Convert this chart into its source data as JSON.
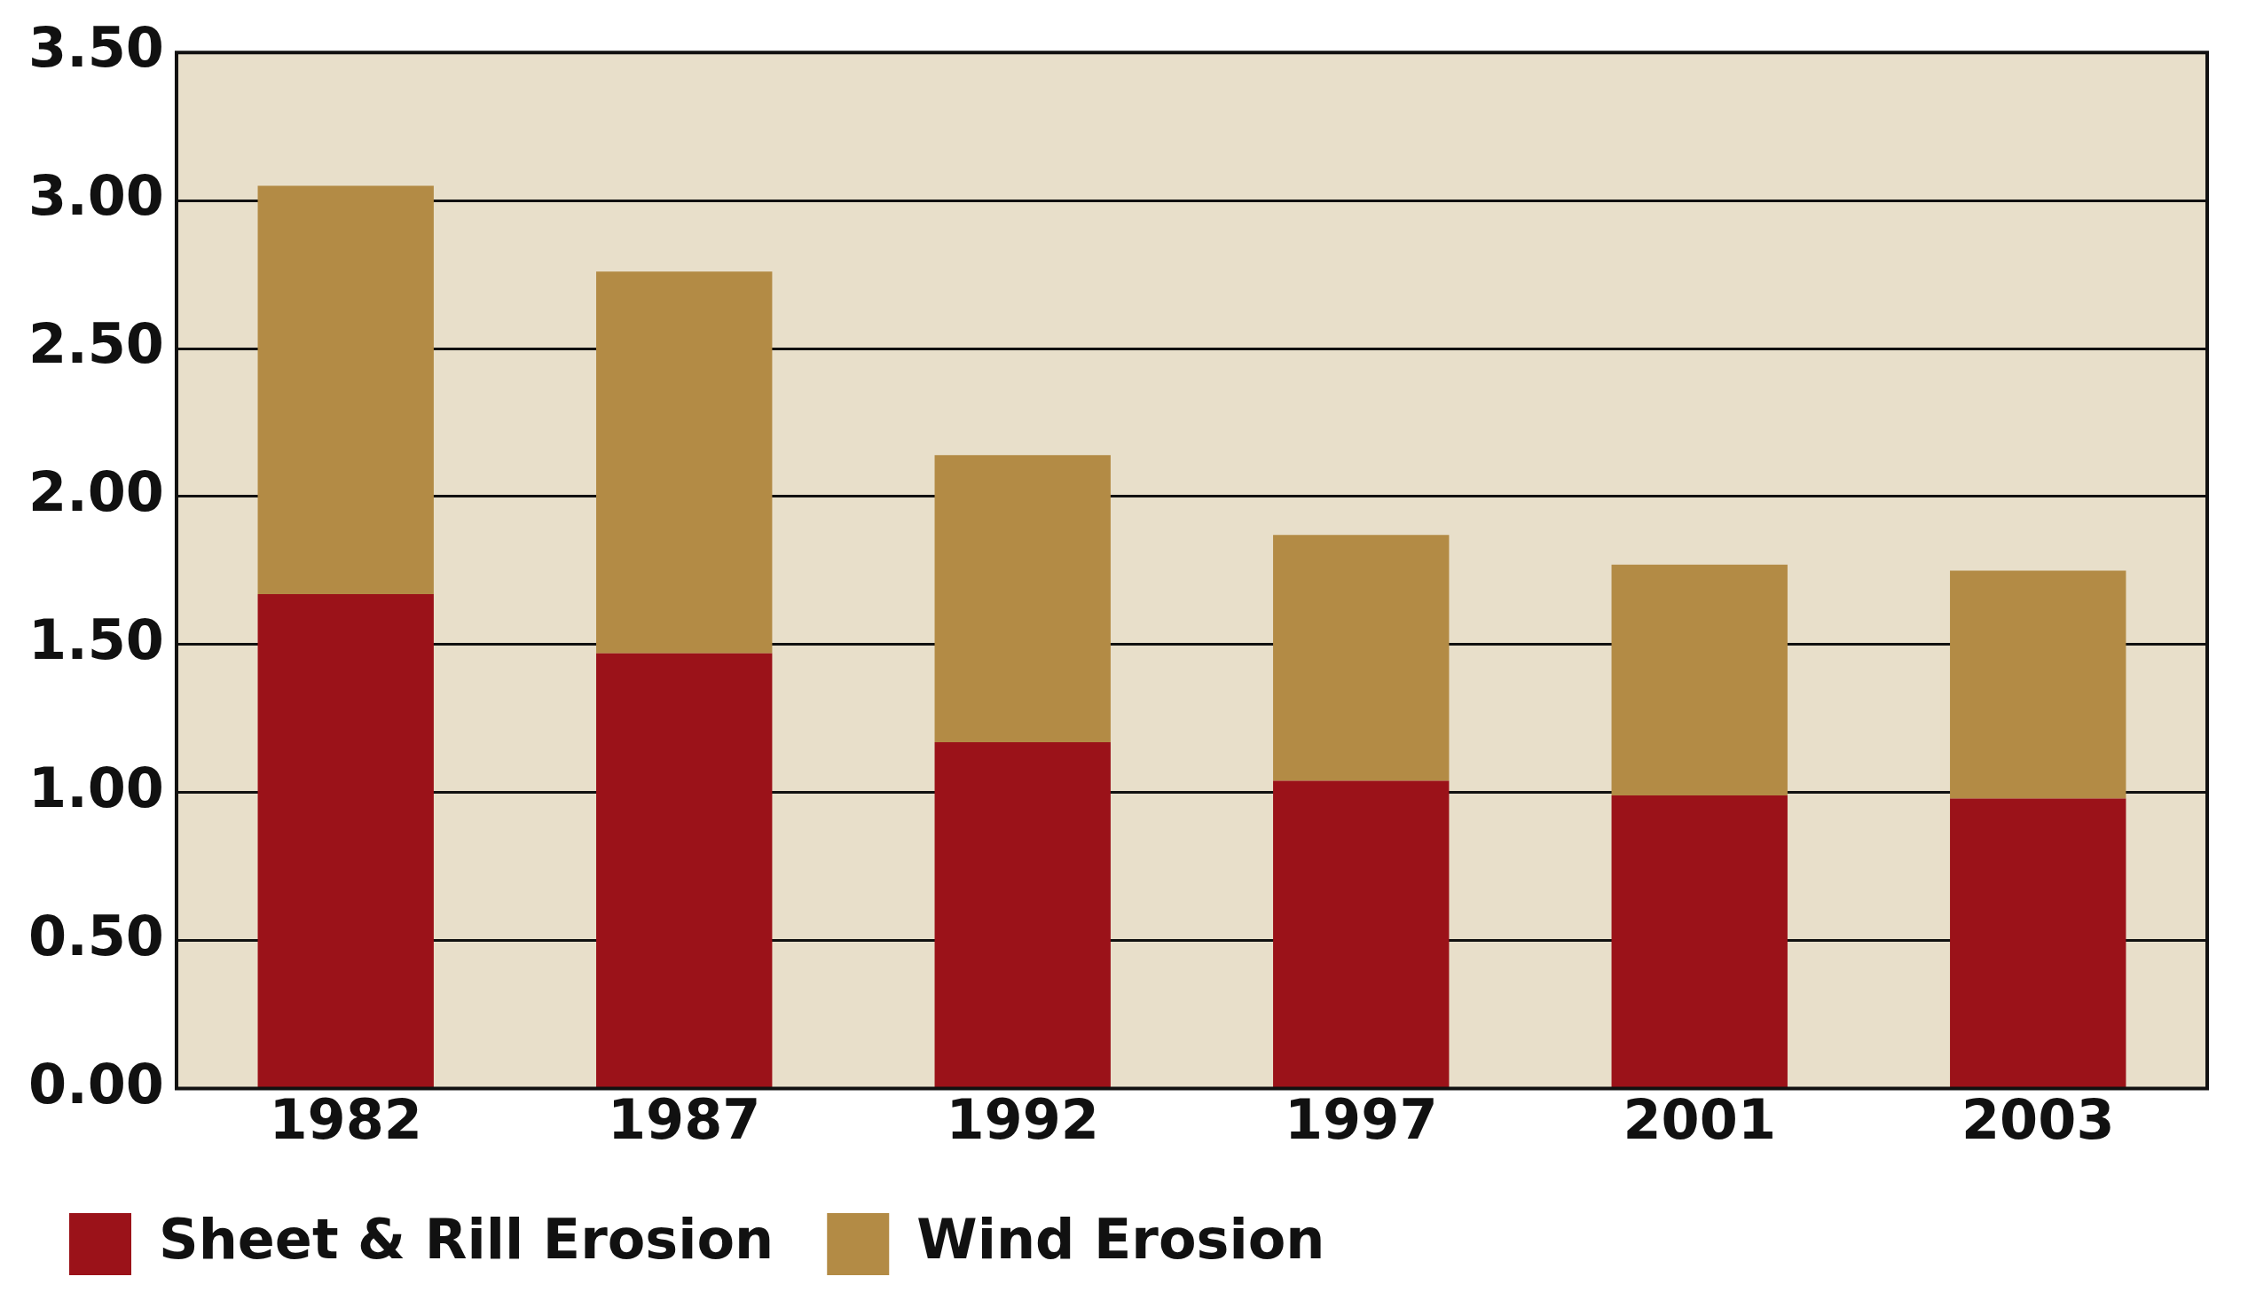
{
  "chart_data": {
    "type": "bar",
    "stacked": true,
    "categories": [
      "1982",
      "1987",
      "1992",
      "1997",
      "2001",
      "2003"
    ],
    "series": [
      {
        "name": "Sheet & Rill Erosion",
        "color": "#9b1219",
        "values": [
          1.67,
          1.47,
          1.17,
          1.04,
          0.99,
          0.98
        ]
      },
      {
        "name": "Wind Erosion",
        "color": "#b38b45",
        "values": [
          1.38,
          1.29,
          0.97,
          0.83,
          0.78,
          0.77
        ]
      }
    ],
    "ylim": [
      0,
      3.5
    ],
    "yticks": [
      {
        "value": 0,
        "label": "0.00"
      },
      {
        "value": 0.5,
        "label": "0.50"
      },
      {
        "value": 1,
        "label": "1.00"
      },
      {
        "value": 1.5,
        "label": "1.50"
      },
      {
        "value": 2,
        "label": "2.00"
      },
      {
        "value": 2.5,
        "label": "2.50"
      },
      {
        "value": 3,
        "label": "3.00"
      },
      {
        "value": 3.5,
        "label": "3.50"
      }
    ],
    "grid": "y",
    "legend": "bottom left"
  }
}
